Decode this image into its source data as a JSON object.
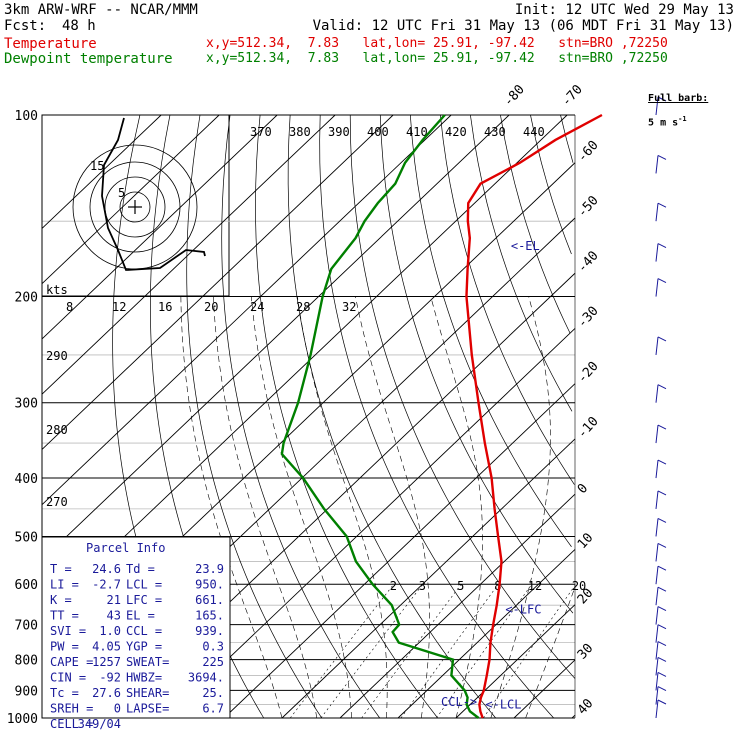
{
  "header": {
    "line1_left": "3km ARW-WRF -- NCAR/MMM",
    "line1_right": "Init: 12 UTC Wed 29 May 13",
    "fcst_label": "Fcst:",
    "fcst_value": "48 h",
    "valid": "Valid: 12 UTC Fri 31 May 13 (06 MDT Fri 31 May 13)",
    "temp_label": "Temperature",
    "temp_info": "x,y=512.34,  7.83   lat,lon= 25.91, -97.42   stn=BRO ,72250",
    "dew_label": "Dewpoint temperature",
    "dew_info": "x,y=512.34,  7.83   lat,lon= 25.91, -97.42   stn=BRO ,72250"
  },
  "wind_legend": {
    "line1": "Full barb:",
    "line2": "5 m s",
    "exp": "-1"
  },
  "hodograph": {
    "units": "kts",
    "ring_labels": [
      "5",
      "15"
    ]
  },
  "parcel_info": {
    "title": "Parcel Info",
    "rows": [
      [
        "T  =",
        "24.6",
        "Td =",
        "23.9"
      ],
      [
        "LI =",
        "-2.7",
        "LCL =",
        "950."
      ],
      [
        "K  =",
        "21",
        "LFC =",
        "661."
      ],
      [
        "TT =",
        "43",
        "EL  =",
        "165."
      ],
      [
        "SVI =",
        "1.0",
        "CCL =",
        "939."
      ],
      [
        "PW =",
        "4.05",
        "YGP =",
        "0.3"
      ],
      [
        "CAPE =",
        "1257",
        "SWEAT=",
        "225"
      ],
      [
        "CIN =",
        "-92",
        "HWBZ=",
        "3694."
      ],
      [
        "Tc =",
        "27.6",
        "SHEAR=",
        "25."
      ],
      [
        "SREH =",
        "0",
        "LAPSE=",
        "6.7"
      ],
      [
        "CELL =",
        "349/04",
        "",
        ""
      ]
    ]
  },
  "level_markers": {
    "el": "<-EL",
    "lfc": "<-LFC",
    "lcl": "<-LCL",
    "ccl": "CCL->"
  },
  "chart_data": {
    "type": "line",
    "subtype": "skew-T log-P diagram",
    "y_axis": {
      "label": "",
      "scale": "log",
      "range": [
        1000,
        100
      ],
      "ticks": [
        1000,
        900,
        800,
        700,
        600,
        500,
        400,
        300,
        200,
        100
      ]
    },
    "isotherm_labels": [
      -80,
      -70,
      -60,
      -50,
      -40,
      -30,
      -20,
      -10,
      0,
      10,
      20,
      30,
      40
    ],
    "theta_labels_K": [
      370,
      380,
      390,
      400,
      410,
      420,
      430,
      440
    ],
    "theta_e_labels_K": [
      290,
      280,
      270
    ],
    "mixing_ratio_labels": [
      2,
      3,
      5,
      8,
      12,
      20
    ],
    "hodograph_speed_labels": [
      8,
      12,
      16,
      20,
      24,
      28,
      32
    ],
    "series": [
      {
        "name": "Temperature",
        "pressure": [
          1000,
          975,
          950,
          925,
          900,
          850,
          800,
          750,
          700,
          650,
          600,
          550,
          500,
          450,
          400,
          350,
          300,
          250,
          200,
          180,
          160,
          150,
          140,
          130,
          120,
          110,
          100
        ],
        "temperature": [
          24.6,
          23.0,
          21.6,
          20.6,
          19.8,
          17.6,
          15.2,
          12.3,
          9.5,
          6.6,
          3.3,
          -0.5,
          -5.6,
          -11.2,
          -17.3,
          -24.8,
          -33.2,
          -43.0,
          -54.5,
          -59.3,
          -64.5,
          -67.9,
          -71.1,
          -72.5,
          -69.5,
          -67.5,
          -64.0
        ]
      },
      {
        "name": "Dewpoint temperature",
        "pressure": [
          1000,
          975,
          950,
          925,
          900,
          850,
          800,
          750,
          720,
          700,
          650,
          600,
          550,
          500,
          450,
          400,
          365,
          350,
          300,
          250,
          200,
          180,
          160,
          150,
          140,
          130,
          120,
          110,
          100
        ],
        "temperature": [
          23.9,
          21.2,
          19.4,
          18.3,
          16.5,
          11.5,
          8.9,
          -3.5,
          -6.5,
          -6.7,
          -11.5,
          -18.6,
          -25.6,
          -31.7,
          -40.6,
          -49.8,
          -57.8,
          -59.5,
          -64.3,
          -70.8,
          -79.3,
          -82.8,
          -84.2,
          -85.7,
          -86.7,
          -87.2,
          -89.3,
          -90.4,
          -91.1
        ]
      }
    ],
    "wind_barbs": [
      {
        "p": 1000,
        "speed_ms": 5
      },
      {
        "p": 950,
        "speed_ms": 6
      },
      {
        "p": 900,
        "speed_ms": 4
      },
      {
        "p": 850,
        "speed_ms": 3
      },
      {
        "p": 800,
        "speed_ms": 3
      },
      {
        "p": 750,
        "speed_ms": 4
      },
      {
        "p": 700,
        "speed_ms": 4
      },
      {
        "p": 650,
        "speed_ms": 5
      },
      {
        "p": 600,
        "speed_ms": 5
      },
      {
        "p": 550,
        "speed_ms": 5
      },
      {
        "p": 500,
        "speed_ms": 5
      },
      {
        "p": 450,
        "speed_ms": 5
      },
      {
        "p": 400,
        "speed_ms": 5
      },
      {
        "p": 350,
        "speed_ms": 5
      },
      {
        "p": 300,
        "speed_ms": 5
      },
      {
        "p": 250,
        "speed_ms": 5
      },
      {
        "p": 200,
        "speed_ms": 5
      },
      {
        "p": 175,
        "speed_ms": 5
      },
      {
        "p": 150,
        "speed_ms": 5
      },
      {
        "p": 125,
        "speed_ms": 5
      },
      {
        "p": 100,
        "speed_ms": 5
      }
    ],
    "colors": {
      "temperature": "#e00000",
      "dewpoint": "#008000",
      "wind": "#1a1a9a"
    }
  }
}
